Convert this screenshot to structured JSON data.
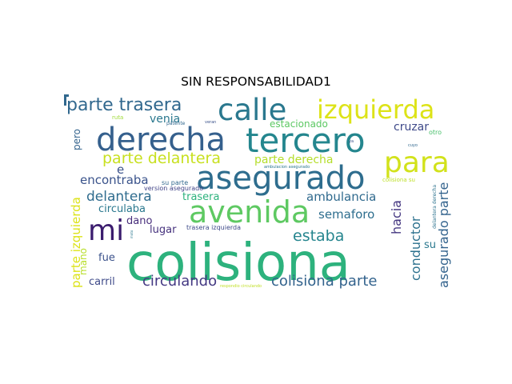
{
  "chart_data": {
    "type": "wordcloud",
    "title": "SIN RESPONSABILIDAD1",
    "words": [
      {
        "text": "colisiona",
        "color": "#2db27d"
      },
      {
        "text": "derecha",
        "color": "#35608d"
      },
      {
        "text": "tercero",
        "color": "#24868e"
      },
      {
        "text": "asegurado",
        "color": "#2e6d8e"
      },
      {
        "text": "calle",
        "color": "#2a788e"
      },
      {
        "text": "izquierda",
        "color": "#dde318"
      },
      {
        "text": "para",
        "color": "#d2e21b"
      },
      {
        "text": "avenida",
        "color": "#5ec962"
      },
      {
        "text": "mi",
        "color": "#3b1c6e"
      },
      {
        "text": "parte trasera",
        "color": "#31688e"
      },
      {
        "text": "parte delantera",
        "color": "#c8e020"
      },
      {
        "text": "estaba",
        "color": "#25858e"
      },
      {
        "text": "circulando",
        "color": "#443983"
      },
      {
        "text": "colisiona parte",
        "color": "#33638d"
      },
      {
        "text": "delantera",
        "color": "#2f6c8e"
      },
      {
        "text": "encontraba",
        "color": "#3a538b"
      },
      {
        "text": "ambulancia",
        "color": "#306a8e"
      },
      {
        "text": "semaforo",
        "color": "#2e6e8e"
      },
      {
        "text": "hacia",
        "color": "#453781"
      },
      {
        "text": "conductor",
        "color": "#2c718e"
      },
      {
        "text": "asegurado parte",
        "color": "#33638d"
      },
      {
        "text": "parte izquierda",
        "color": "#dce319"
      },
      {
        "text": "parte derecha",
        "color": "#b5de2b"
      },
      {
        "text": "venia",
        "color": "#2a778e"
      },
      {
        "text": "estacionado",
        "color": "#5cc863"
      },
      {
        "text": "cruzar",
        "color": "#3e4989"
      },
      {
        "text": "pero",
        "color": "#33638d"
      },
      {
        "text": "trasera",
        "color": "#2db27d"
      },
      {
        "text": "circulaba",
        "color": "#2a788e"
      },
      {
        "text": "dano",
        "color": "#472d7b"
      },
      {
        "text": "lugar",
        "color": "#46327e"
      },
      {
        "text": "fue",
        "color": "#3b528b"
      },
      {
        "text": "carril",
        "color": "#3e4a89"
      },
      {
        "text": "mano",
        "color": "#b8de29"
      },
      {
        "text": "su",
        "color": "#2a788e"
      },
      {
        "text": "e",
        "color": "#3b528b"
      },
      {
        "text": "trasera izquierda",
        "color": "#3e4a89"
      },
      {
        "text": "version asegurado",
        "color": "#404387"
      },
      {
        "text": "su parte",
        "color": "#31688e"
      },
      {
        "text": "ambulacion asegurado",
        "color": "#2a778e"
      },
      {
        "text": "colisiona su",
        "color": "#bddf26"
      },
      {
        "text": "delantera derecha",
        "color": "#2c728e"
      },
      {
        "text": "ruta",
        "color": "#a0da39"
      },
      {
        "text": "patente",
        "color": "#31688e"
      },
      {
        "text": "veran",
        "color": "#3b528b"
      },
      {
        "text": "cuyo",
        "color": "#31688e"
      },
      {
        "text": "otro",
        "color": "#4ac16d"
      },
      {
        "text": "respondio circulando",
        "color": "#c0df25"
      },
      {
        "text": "moto",
        "color": "#2a788e"
      },
      {
        "text": "ya",
        "color": "#3b528b"
      }
    ]
  }
}
